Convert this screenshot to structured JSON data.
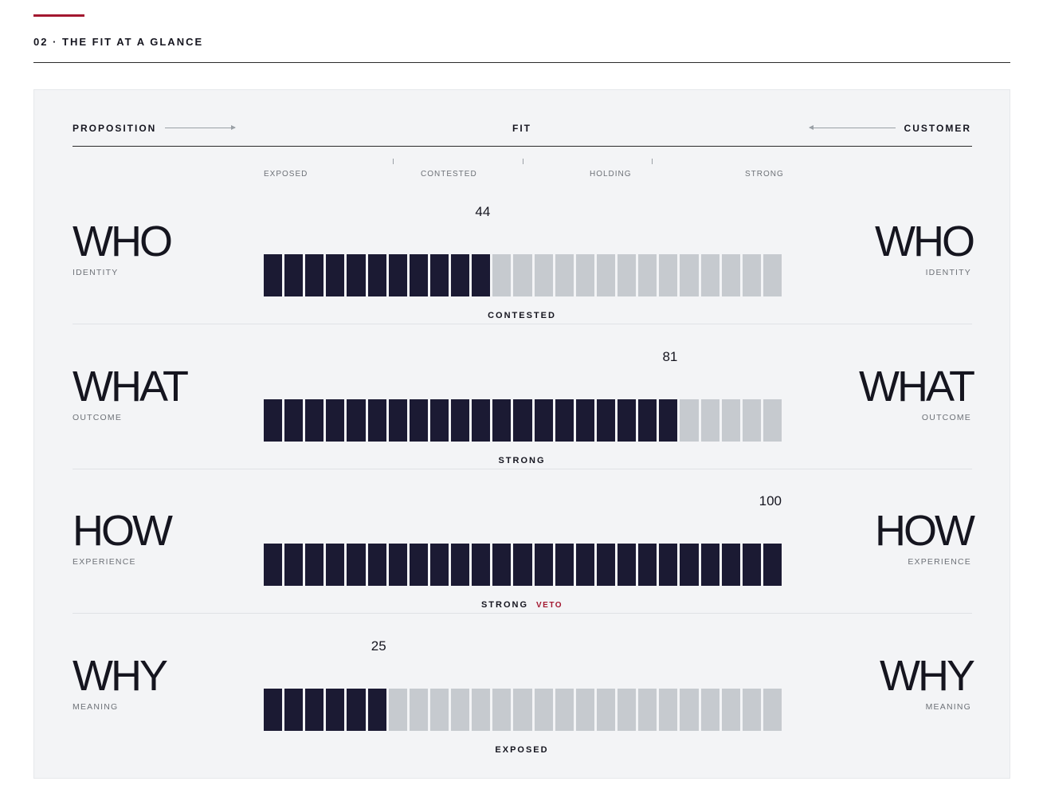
{
  "section": {
    "title": "02 · THE FIT AT A GLANCE"
  },
  "colors": {
    "accent": "#a3172f",
    "filled": "#1b1a33",
    "empty": "#c6cacf",
    "panel": "#f3f4f6"
  },
  "panel": {
    "left_label": "PROPOSITION",
    "center_label": "FIT",
    "right_label": "CUSTOMER"
  },
  "chart_data": {
    "type": "bar",
    "scale": [
      0,
      100
    ],
    "segments": 25,
    "zones": [
      "EXPOSED",
      "CONTESTED",
      "HOLDING",
      "STRONG"
    ],
    "rows": [
      {
        "label": "WHO",
        "sublabel": "IDENTITY",
        "value": 44,
        "verdict": "CONTESTED",
        "flag": ""
      },
      {
        "label": "WHAT",
        "sublabel": "OUTCOME",
        "value": 81,
        "verdict": "STRONG",
        "flag": ""
      },
      {
        "label": "HOW",
        "sublabel": "EXPERIENCE",
        "value": 100,
        "verdict": "STRONG",
        "flag": "VETO"
      },
      {
        "label": "WHY",
        "sublabel": "MEANING",
        "value": 25,
        "verdict": "EXPOSED",
        "flag": ""
      }
    ]
  }
}
